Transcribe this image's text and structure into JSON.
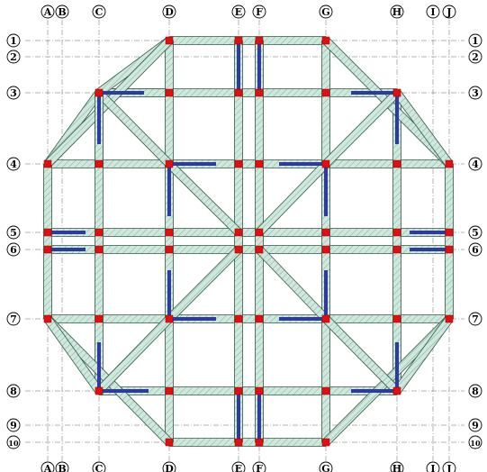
{
  "drawing": {
    "columns_axes": [
      "A",
      "B",
      "C",
      "D",
      "E",
      "F",
      "G",
      "H",
      "I",
      "J"
    ],
    "row_axes": [
      "1",
      "2",
      "3",
      "4",
      "5",
      "6",
      "7",
      "8",
      "9",
      "10"
    ]
  },
  "colors": {
    "beam_fill": "#cfe7dc",
    "beam_hatch": "#6ea58c",
    "beam_edge": "#2f5a45",
    "shear_wall": "#2e3a9c",
    "column": "#e01010",
    "grid": "#666666"
  }
}
